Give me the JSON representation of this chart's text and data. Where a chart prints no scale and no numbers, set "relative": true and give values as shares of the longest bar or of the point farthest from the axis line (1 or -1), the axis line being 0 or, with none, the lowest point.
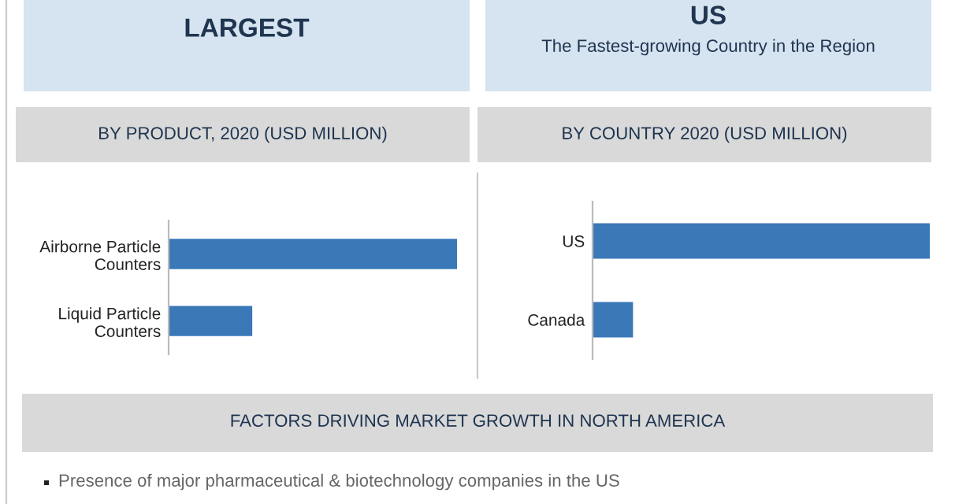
{
  "chart_data": [
    {
      "type": "bar",
      "orientation": "horizontal",
      "relative": true,
      "title": "BY PRODUCT, 2020 (USD MILLION)",
      "annotations": [
        "LARGEST"
      ],
      "categories": [
        "Airborne Particle\nCounters",
        "Liquid Particle\nCounters"
      ],
      "values": [
        1,
        0.29
      ],
      "color": "#3a78b8",
      "grid": false,
      "legend": false
    },
    {
      "type": "bar",
      "orientation": "horizontal",
      "relative": true,
      "title": "BY COUNTRY 2020 (USD MILLION)",
      "annotations": [
        "US",
        "The Fastest-growing Country in the Region"
      ],
      "categories": [
        "US",
        "Canada"
      ],
      "values": [
        1,
        0.12
      ],
      "color": "#3a78b8",
      "grid": false,
      "legend": false
    },
    {
      "type": "other",
      "title": "FACTORS DRIVING MARKET GROWTH IN NORTH AMERICA",
      "annotations": [
        "Presence of major pharmaceutical & biotechnology companies in the US"
      ]
    }
  ]
}
